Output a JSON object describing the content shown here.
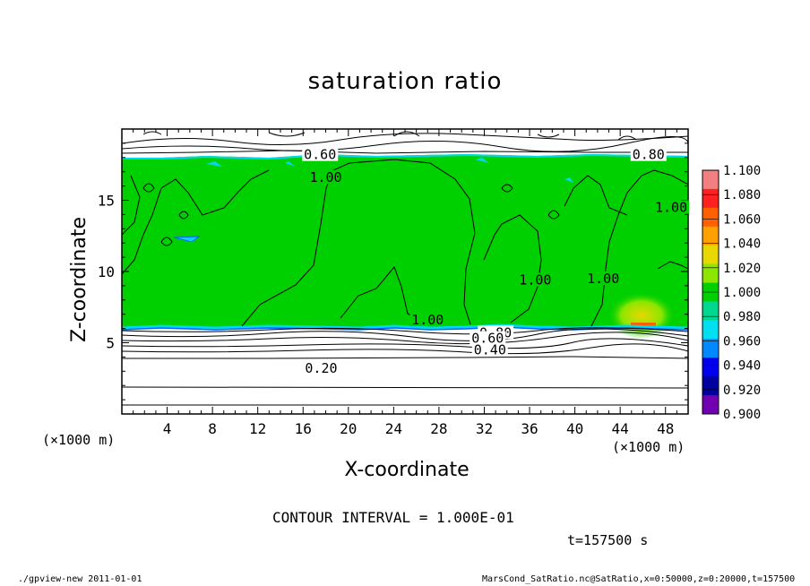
{
  "chart_data": {
    "type": "heatmap",
    "title": "saturation ratio",
    "xlabel": "X-coordinate",
    "ylabel": "Z-coordinate",
    "xunit": "(×1000 m)",
    "yunit": "(×1000 m)",
    "xlim": [
      0,
      50
    ],
    "ylim": [
      0,
      20
    ],
    "xticks": [
      4,
      8,
      12,
      16,
      20,
      24,
      28,
      32,
      36,
      40,
      44,
      48
    ],
    "yticks": [
      5,
      10,
      15
    ],
    "colorbar": {
      "levels": [
        "1.100",
        "1.080",
        "1.060",
        "1.040",
        "1.020",
        "1.000",
        "0.980",
        "0.960",
        "0.940",
        "0.920",
        "0.900"
      ],
      "colors": [
        "#f28080",
        "#ff2020",
        "#ff6000",
        "#ffa000",
        "#e6d800",
        "#8ce600",
        "#00d000",
        "#00d890",
        "#00e0f0",
        "#0088ff",
        "#0000ee",
        "#0000a0",
        "#7000b0"
      ]
    },
    "contour_labels": [
      {
        "text": "0.60",
        "x": 17.5,
        "y": 18.2
      },
      {
        "text": "0.80",
        "x": 46.5,
        "y": 18.2
      },
      {
        "text": "1.00",
        "x": 18.0,
        "y": 16.6
      },
      {
        "text": "1.00",
        "x": 27.0,
        "y": 6.6
      },
      {
        "text": "1.00",
        "x": 36.5,
        "y": 9.4
      },
      {
        "text": "1.00",
        "x": 42.5,
        "y": 9.5
      },
      {
        "text": "1.00",
        "x": 48.5,
        "y": 14.5
      },
      {
        "text": "0.80",
        "x": 33.0,
        "y": 5.7
      },
      {
        "text": "0.60",
        "x": 32.3,
        "y": 5.3
      },
      {
        "text": "0.40",
        "x": 32.5,
        "y": 4.5
      },
      {
        "text": "0.20",
        "x": 17.6,
        "y": 3.2
      }
    ],
    "contour_interval": "CONTOUR INTERVAL = 1.000E-01",
    "time": "t=157500 s"
  },
  "labels": {
    "xunit_left": "(×1000 m)",
    "xunit_right": "(×1000 m)",
    "footer_left": "./gpview-new  2011-01-01",
    "footer_right": "MarsCond_SatRatio.nc@SatRatio,x=0:50000,z=0:20000,t=157500"
  }
}
